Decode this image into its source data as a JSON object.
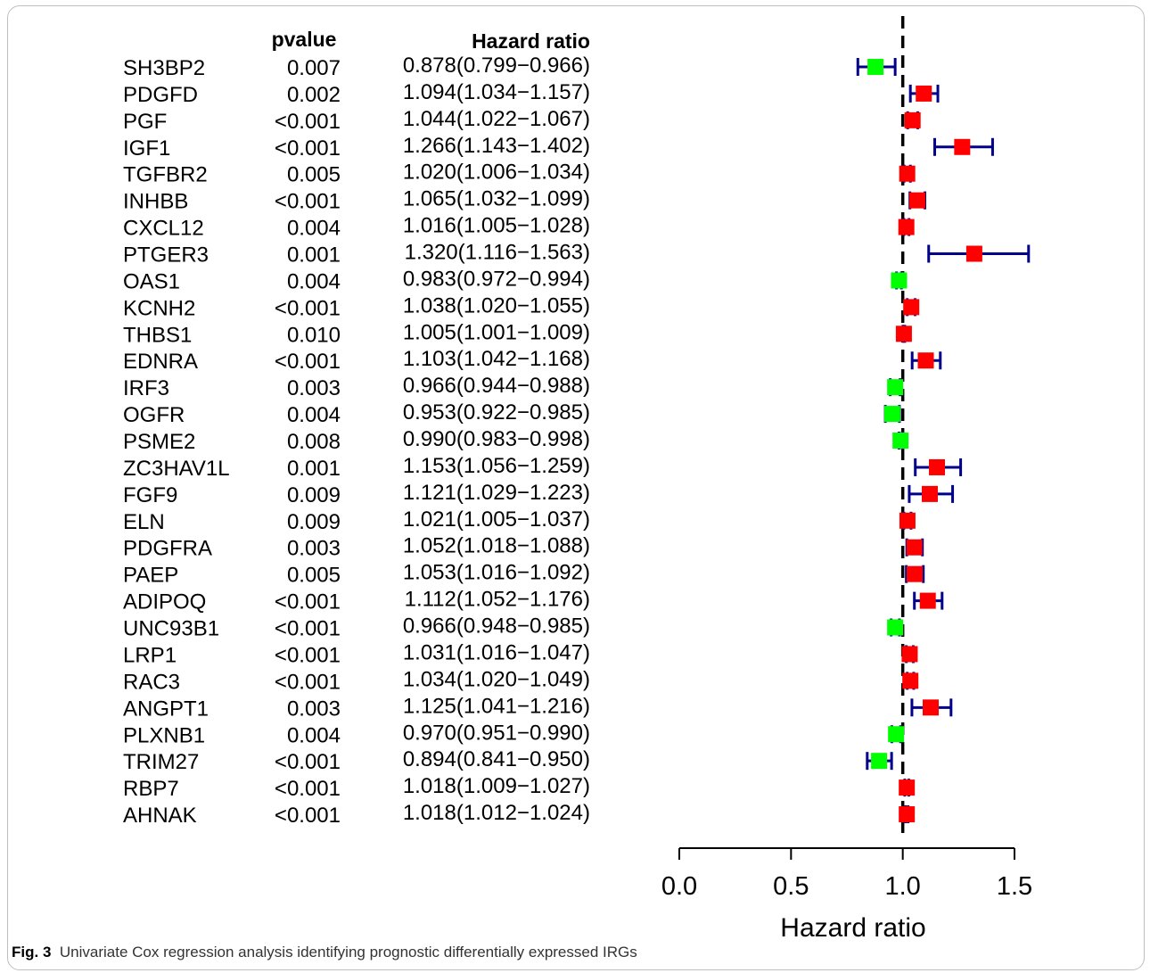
{
  "caption": {
    "label": "Fig. 3",
    "text": "Univariate Cox regression analysis identifying prognostic differentially expressed IRGs"
  },
  "table_headers": {
    "pvalue": "pvalue",
    "hr": "Hazard ratio"
  },
  "chart_data": {
    "type": "forest",
    "xlabel": "Hazard ratio",
    "xlim": [
      0.0,
      1.5
    ],
    "xticks": [
      "0.0",
      "0.5",
      "1.0",
      "1.5"
    ],
    "reference_line": 1.0,
    "colors": {
      "protective": "#00ff00",
      "risk": "#ff0000",
      "whisker": "#00008b",
      "refline": "#000000"
    },
    "rows": [
      {
        "gene": "SH3BP2",
        "pvalue": "0.007",
        "hr_text": "0.878(0.799−0.966)",
        "hr": 0.878,
        "lo": 0.799,
        "hi": 0.966
      },
      {
        "gene": "PDGFD",
        "pvalue": "0.002",
        "hr_text": "1.094(1.034−1.157)",
        "hr": 1.094,
        "lo": 1.034,
        "hi": 1.157
      },
      {
        "gene": "PGF",
        "pvalue": "<0.001",
        "hr_text": "1.044(1.022−1.067)",
        "hr": 1.044,
        "lo": 1.022,
        "hi": 1.067
      },
      {
        "gene": "IGF1",
        "pvalue": "<0.001",
        "hr_text": "1.266(1.143−1.402)",
        "hr": 1.266,
        "lo": 1.143,
        "hi": 1.402
      },
      {
        "gene": "TGFBR2",
        "pvalue": "0.005",
        "hr_text": "1.020(1.006−1.034)",
        "hr": 1.02,
        "lo": 1.006,
        "hi": 1.034
      },
      {
        "gene": "INHBB",
        "pvalue": "<0.001",
        "hr_text": "1.065(1.032−1.099)",
        "hr": 1.065,
        "lo": 1.032,
        "hi": 1.099
      },
      {
        "gene": "CXCL12",
        "pvalue": "0.004",
        "hr_text": "1.016(1.005−1.028)",
        "hr": 1.016,
        "lo": 1.005,
        "hi": 1.028
      },
      {
        "gene": "PTGER3",
        "pvalue": "0.001",
        "hr_text": "1.320(1.116−1.563)",
        "hr": 1.32,
        "lo": 1.116,
        "hi": 1.563
      },
      {
        "gene": "OAS1",
        "pvalue": "0.004",
        "hr_text": "0.983(0.972−0.994)",
        "hr": 0.983,
        "lo": 0.972,
        "hi": 0.994
      },
      {
        "gene": "KCNH2",
        "pvalue": "<0.001",
        "hr_text": "1.038(1.020−1.055)",
        "hr": 1.038,
        "lo": 1.02,
        "hi": 1.055
      },
      {
        "gene": "THBS1",
        "pvalue": "0.010",
        "hr_text": "1.005(1.001−1.009)",
        "hr": 1.005,
        "lo": 1.001,
        "hi": 1.009
      },
      {
        "gene": "EDNRA",
        "pvalue": "<0.001",
        "hr_text": "1.103(1.042−1.168)",
        "hr": 1.103,
        "lo": 1.042,
        "hi": 1.168
      },
      {
        "gene": "IRF3",
        "pvalue": "0.003",
        "hr_text": "0.966(0.944−0.988)",
        "hr": 0.966,
        "lo": 0.944,
        "hi": 0.988
      },
      {
        "gene": "OGFR",
        "pvalue": "0.004",
        "hr_text": "0.953(0.922−0.985)",
        "hr": 0.953,
        "lo": 0.922,
        "hi": 0.985
      },
      {
        "gene": "PSME2",
        "pvalue": "0.008",
        "hr_text": "0.990(0.983−0.998)",
        "hr": 0.99,
        "lo": 0.983,
        "hi": 0.998
      },
      {
        "gene": "ZC3HAV1L",
        "pvalue": "0.001",
        "hr_text": "1.153(1.056−1.259)",
        "hr": 1.153,
        "lo": 1.056,
        "hi": 1.259
      },
      {
        "gene": "FGF9",
        "pvalue": "0.009",
        "hr_text": "1.121(1.029−1.223)",
        "hr": 1.121,
        "lo": 1.029,
        "hi": 1.223
      },
      {
        "gene": "ELN",
        "pvalue": "0.009",
        "hr_text": "1.021(1.005−1.037)",
        "hr": 1.021,
        "lo": 1.005,
        "hi": 1.037
      },
      {
        "gene": "PDGFRA",
        "pvalue": "0.003",
        "hr_text": "1.052(1.018−1.088)",
        "hr": 1.052,
        "lo": 1.018,
        "hi": 1.088
      },
      {
        "gene": "PAEP",
        "pvalue": "0.005",
        "hr_text": "1.053(1.016−1.092)",
        "hr": 1.053,
        "lo": 1.016,
        "hi": 1.092
      },
      {
        "gene": "ADIPOQ",
        "pvalue": "<0.001",
        "hr_text": "1.112(1.052−1.176)",
        "hr": 1.112,
        "lo": 1.052,
        "hi": 1.176
      },
      {
        "gene": "UNC93B1",
        "pvalue": "<0.001",
        "hr_text": "0.966(0.948−0.985)",
        "hr": 0.966,
        "lo": 0.948,
        "hi": 0.985
      },
      {
        "gene": "LRP1",
        "pvalue": "<0.001",
        "hr_text": "1.031(1.016−1.047)",
        "hr": 1.031,
        "lo": 1.016,
        "hi": 1.047
      },
      {
        "gene": "RAC3",
        "pvalue": "<0.001",
        "hr_text": "1.034(1.020−1.049)",
        "hr": 1.034,
        "lo": 1.02,
        "hi": 1.049
      },
      {
        "gene": "ANGPT1",
        "pvalue": "0.003",
        "hr_text": "1.125(1.041−1.216)",
        "hr": 1.125,
        "lo": 1.041,
        "hi": 1.216
      },
      {
        "gene": "PLXNB1",
        "pvalue": "0.004",
        "hr_text": "0.970(0.951−0.990)",
        "hr": 0.97,
        "lo": 0.951,
        "hi": 0.99
      },
      {
        "gene": "TRIM27",
        "pvalue": "<0.001",
        "hr_text": "0.894(0.841−0.950)",
        "hr": 0.894,
        "lo": 0.841,
        "hi": 0.95
      },
      {
        "gene": "RBP7",
        "pvalue": "<0.001",
        "hr_text": "1.018(1.009−1.027)",
        "hr": 1.018,
        "lo": 1.009,
        "hi": 1.027
      },
      {
        "gene": "AHNAK",
        "pvalue": "<0.001",
        "hr_text": "1.018(1.012−1.024)",
        "hr": 1.018,
        "lo": 1.012,
        "hi": 1.024
      }
    ]
  }
}
